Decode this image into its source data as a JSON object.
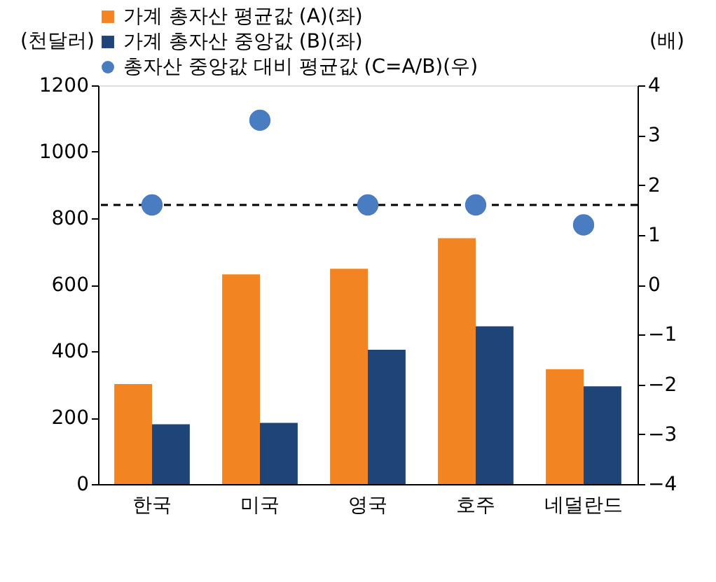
{
  "chart_data": {
    "type": "bar",
    "categories": [
      "한국",
      "미국",
      "영국",
      "호주",
      "네덜란드"
    ],
    "series": [
      {
        "name": "가계 총자산 평균값 (A)(좌)",
        "color": "#f28522",
        "values": [
          301,
          631,
          648,
          740,
          346
        ]
      },
      {
        "name": "가계 총자산 중앙값 (B)(좌)",
        "color": "#1f4478",
        "values": [
          180,
          184,
          404,
          475,
          294
        ]
      },
      {
        "name": "총자산 중앙값 대비 평균값 (C=A/B)(우)",
        "color": "#4a7cc1",
        "type": "scatter",
        "axis": "y2",
        "marker": "circle",
        "values": [
          1.6,
          3.3,
          1.6,
          1.6,
          1.2
        ]
      }
    ],
    "ylabel": "(천달러)",
    "y2label": "(배)",
    "ylim": [
      0,
      1200
    ],
    "yticks": [
      0,
      200,
      400,
      600,
      800,
      1000,
      1200
    ],
    "y2lim": [
      -4,
      4
    ],
    "y2ticks": [
      -4,
      -3,
      -2,
      -1,
      0,
      1,
      2,
      3,
      4
    ],
    "ref_lines": [
      {
        "axis": "y2",
        "value": 1.6,
        "color": "#000000",
        "line_style": "dashed"
      }
    ],
    "legend": "top",
    "grid": false
  }
}
